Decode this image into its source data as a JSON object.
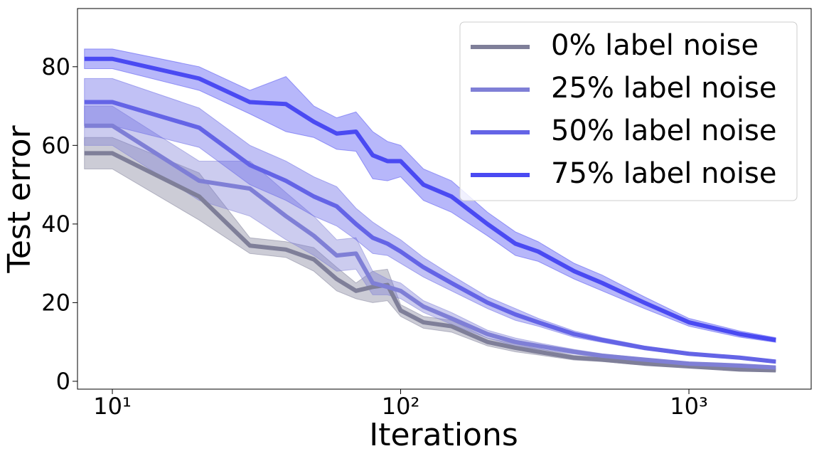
{
  "chart_data": {
    "type": "line",
    "xlabel": "Iterations",
    "ylabel": "Test error",
    "xscale": "log",
    "grid": false,
    "legend": "upper right",
    "x": [
      8,
      10,
      20,
      30,
      40,
      50,
      60,
      70,
      80,
      90,
      100,
      120,
      150,
      200,
      250,
      300,
      400,
      500,
      700,
      1000,
      1500,
      2000
    ],
    "xlim": [
      7.57,
      2655
    ],
    "ylim": [
      -2,
      94.8
    ],
    "xticks": [
      {
        "value": 10,
        "label": "10¹"
      },
      {
        "value": 100,
        "label": "10²"
      },
      {
        "value": 1000,
        "label": "10³"
      }
    ],
    "yticks": [
      0,
      20,
      40,
      60,
      80
    ],
    "series": [
      {
        "name": "0% label noise",
        "color": "#7f7f99",
        "values": [
          58,
          58,
          47,
          34.5,
          33.5,
          31,
          26,
          23,
          24,
          24.5,
          18,
          15,
          14,
          10,
          8.5,
          7.5,
          6,
          5.5,
          4.5,
          3.8,
          3,
          2.8
        ],
        "lower": [
          54,
          54,
          41,
          32.5,
          31.5,
          28,
          23,
          21,
          20,
          20.5,
          16.5,
          13.5,
          12.5,
          9,
          7.5,
          6.7,
          5.4,
          5,
          4.1,
          3.5,
          2.7,
          2.5
        ],
        "upper": [
          62,
          62,
          53,
          36.5,
          35.5,
          34,
          29,
          25,
          28,
          28.5,
          19.5,
          16.5,
          15.5,
          11,
          9.5,
          8.3,
          6.6,
          6,
          4.9,
          4.1,
          3.3,
          3.1
        ]
      },
      {
        "name": "25% label noise",
        "color": "#7f7fd6",
        "values": [
          65,
          65,
          51,
          49,
          42,
          37,
          32,
          32.5,
          25,
          24,
          23,
          19,
          16,
          12,
          10,
          9,
          7.5,
          6.5,
          5.5,
          4.5,
          4,
          3.5
        ],
        "lower": [
          60,
          60,
          46,
          42,
          36,
          32,
          28,
          28.5,
          22,
          22,
          21,
          17.5,
          14.5,
          11,
          9,
          8.2,
          6.9,
          6,
          5.1,
          4.1,
          3.7,
          3.2
        ],
        "upper": [
          70,
          70,
          56,
          56,
          48,
          42,
          36,
          36.5,
          28,
          26,
          25,
          20.5,
          17.5,
          13,
          11,
          9.8,
          8.1,
          7,
          5.9,
          4.9,
          4.3,
          3.8
        ]
      },
      {
        "name": "50% label noise",
        "color": "#6464e6",
        "values": [
          71,
          71,
          64.5,
          55,
          51,
          47,
          44.5,
          40,
          36.5,
          35,
          33,
          29,
          25,
          20,
          17,
          15,
          12,
          10.5,
          8.5,
          7,
          6,
          5
        ],
        "lower": [
          65,
          65,
          59.5,
          50,
          46,
          42,
          39.5,
          36,
          32.5,
          32,
          30,
          26.5,
          23,
          18.5,
          15.5,
          14,
          11.2,
          9.9,
          8,
          6.6,
          5.6,
          4.6
        ],
        "upper": [
          77,
          77,
          69.5,
          60,
          56,
          52,
          49.5,
          44,
          40.5,
          38,
          36,
          31.5,
          27,
          21.5,
          18.5,
          16,
          12.8,
          11.1,
          9,
          7.4,
          6.4,
          5.4
        ]
      },
      {
        "name": "75% label noise",
        "color": "#4a4af2",
        "values": [
          82,
          82,
          77,
          71,
          70.5,
          66,
          63,
          63.5,
          57.5,
          56,
          56,
          50,
          47,
          40,
          35,
          33,
          28,
          25,
          20,
          15,
          12,
          10.5
        ],
        "lower": [
          79.5,
          79.5,
          74,
          68,
          63.5,
          62,
          59,
          58.5,
          51.5,
          51,
          52,
          46,
          43,
          37,
          32,
          30.5,
          26,
          23,
          18.5,
          14,
          11.2,
          9.9
        ],
        "upper": [
          84.5,
          84.5,
          80,
          74,
          77.5,
          70,
          67,
          68.5,
          63.5,
          61,
          60,
          54,
          51,
          43,
          38,
          35.5,
          30,
          27,
          21.5,
          16,
          12.8,
          11.1
        ]
      }
    ]
  }
}
